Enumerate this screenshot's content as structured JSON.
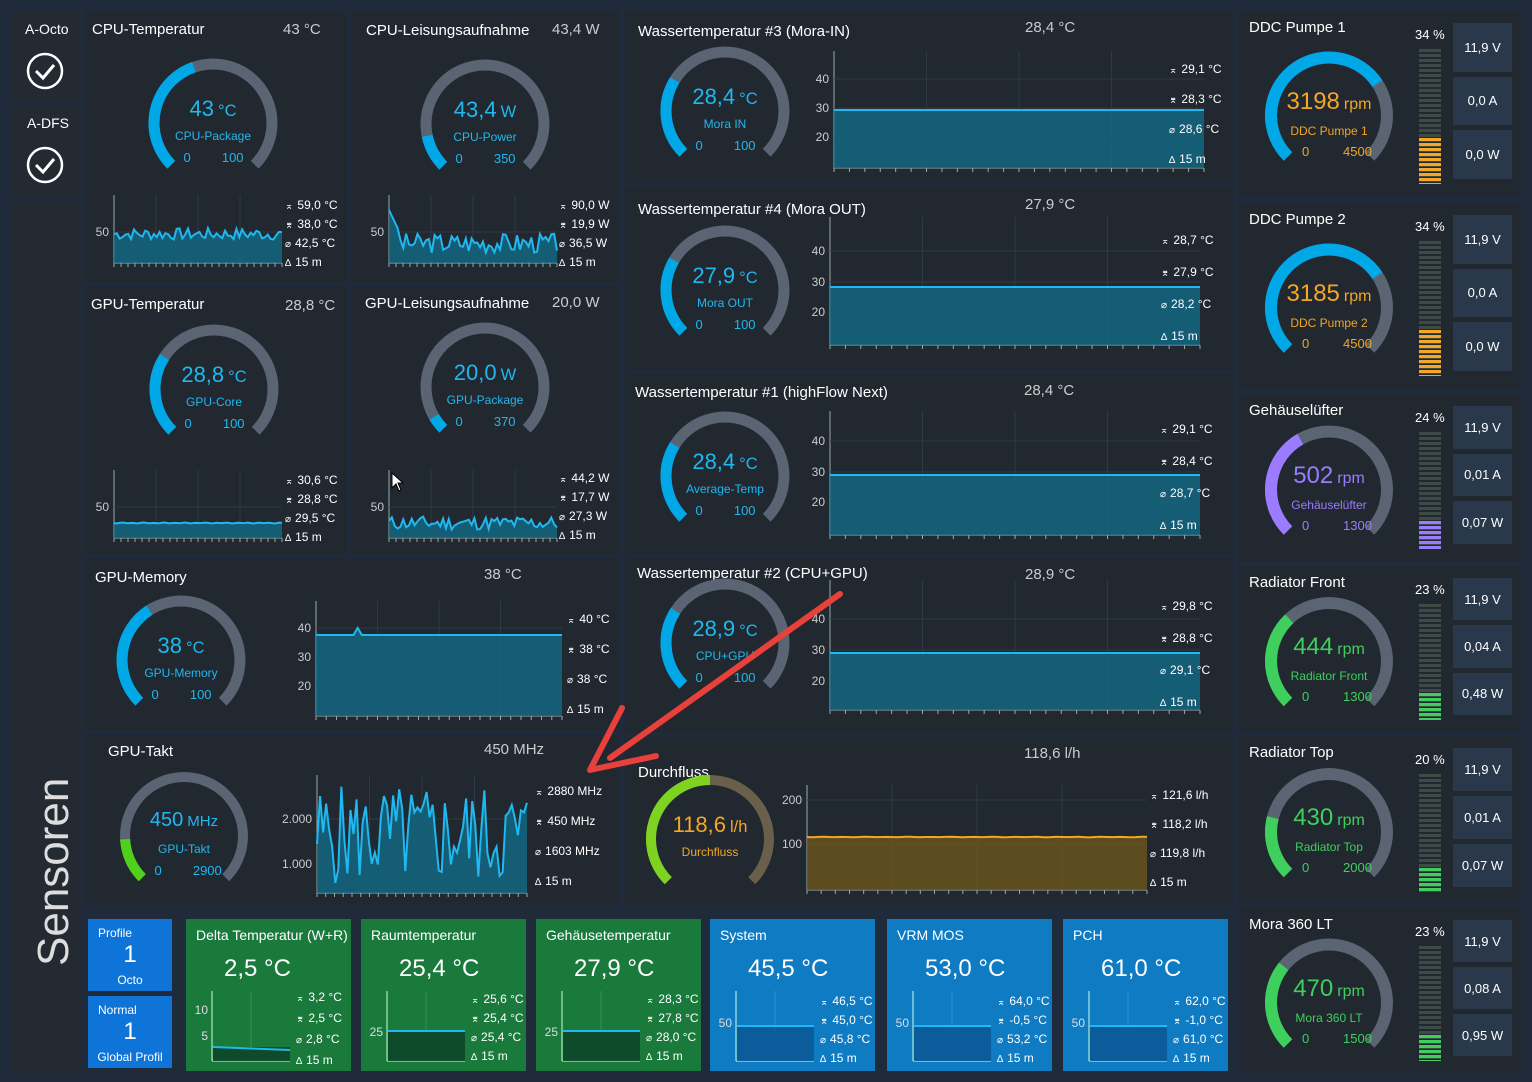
{
  "sidebar": {
    "a_octo": "A-Octo",
    "a_dfs": "A-DFS",
    "sensoren": "Sensoren"
  },
  "gauges": [
    {
      "id": "cpu_temp",
      "title": "CPU-Temperatur",
      "header": "43 °C",
      "value": "43",
      "unit": "°C",
      "label": "CPU-Package",
      "min": "0",
      "max": "100",
      "fraction": 0.43,
      "color": "#00a8e8",
      "track": "#5a6472",
      "stats": [
        "59,0 °C",
        "38,0 °C",
        "42,5 °C",
        "15 m"
      ],
      "yticks": [
        "50"
      ]
    },
    {
      "id": "cpu_power",
      "title": "CPU-Leisungsaufnahme",
      "header": "43,4 W",
      "value": "43,4",
      "unit": "W",
      "label": "CPU-Power",
      "min": "0",
      "max": "350",
      "fraction": 0.124,
      "color": "#00a8e8",
      "track": "#5a6472",
      "stats": [
        "90,0 W",
        "19,9 W",
        "36,5 W",
        "15 m"
      ],
      "yticks": [
        "50"
      ]
    },
    {
      "id": "gpu_temp",
      "title": "GPU-Temperatur",
      "header": "28,8 °C",
      "value": "28,8",
      "unit": "°C",
      "label": "GPU-Core",
      "min": "0",
      "max": "100",
      "fraction": 0.288,
      "color": "#00a8e8",
      "track": "#5a6472",
      "stats": [
        "30,6 °C",
        "28,8 °C",
        "29,5 °C",
        "15 m"
      ],
      "yticks": [
        "50"
      ]
    },
    {
      "id": "gpu_power",
      "title": "GPU-Leisungsaufnahme",
      "header": "20,0 W",
      "value": "20,0",
      "unit": "W",
      "label": "GPU-Package",
      "min": "0",
      "max": "370",
      "fraction": 0.054,
      "color": "#00a8e8",
      "track": "#5a6472",
      "stats": [
        "44,2 W",
        "17,7 W",
        "27,3 W",
        "15 m"
      ],
      "yticks": [
        "50"
      ]
    },
    {
      "id": "gpu_mem",
      "title": "GPU-Memory",
      "header": "38 °C",
      "value": "38",
      "unit": "°C",
      "label": "GPU-Memory",
      "min": "0",
      "max": "100",
      "fraction": 0.38,
      "color": "#00a8e8",
      "track": "#5a6472",
      "stats": [
        "40 °C",
        "38 °C",
        "38 °C",
        "15 m"
      ],
      "yticks": [
        "40",
        "30",
        "20"
      ]
    },
    {
      "id": "gpu_clock",
      "title": "GPU-Takt",
      "header": "450 MHz",
      "value": "450",
      "unit": "MHz",
      "label": "GPU-Takt",
      "min": "0",
      "max": "2900",
      "fraction": 0.155,
      "color": "#4fd11c",
      "track": "#5a6472",
      "stats": [
        "2880 MHz",
        "450 MHz",
        "1603 MHz",
        "15 m"
      ],
      "yticks": [
        "2.000",
        "1.000"
      ]
    },
    {
      "id": "w3",
      "title": "Wassertemperatur #3 (Mora-IN)",
      "header": "28,4 °C",
      "value": "28,4",
      "unit": "°C",
      "label": "Mora IN",
      "min": "0",
      "max": "100",
      "fraction": 0.284,
      "color": "#00a8e8",
      "track": "#5a6472",
      "stats": [
        "29,1 °C",
        "28,3 °C",
        "28,6 °C",
        "15 m"
      ],
      "yticks": [
        "40",
        "30",
        "20"
      ]
    },
    {
      "id": "w4",
      "title": "Wassertemperatur #4 (Mora OUT)",
      "header": "27,9 °C",
      "value": "27,9",
      "unit": "°C",
      "label": "Mora OUT",
      "min": "0",
      "max": "100",
      "fraction": 0.279,
      "color": "#00a8e8",
      "track": "#5a6472",
      "stats": [
        "28,7 °C",
        "27,9 °C",
        "28,2 °C",
        "15 m"
      ],
      "yticks": [
        "40",
        "30",
        "20"
      ]
    },
    {
      "id": "w1",
      "title": "Wassertemperatur #1 (highFlow Next)",
      "header": "28,4 °C",
      "value": "28,4",
      "unit": "°C",
      "label": "Average-Temp",
      "min": "0",
      "max": "100",
      "fraction": 0.284,
      "color": "#00a8e8",
      "track": "#5a6472",
      "stats": [
        "29,1 °C",
        "28,4 °C",
        "28,7 °C",
        "15 m"
      ],
      "yticks": [
        "40",
        "30",
        "20"
      ]
    },
    {
      "id": "w2",
      "title": "Wassertemperatur #2 (CPU+GPU)",
      "header": "28,9 °C",
      "value": "28,9",
      "unit": "°C",
      "label": "CPU+GPU",
      "min": "0",
      "max": "100",
      "fraction": 0.289,
      "color": "#00a8e8",
      "track": "#5a6472",
      "stats": [
        "29,8 °C",
        "28,8 °C",
        "29,1 °C",
        "15 m"
      ],
      "yticks": [
        "40",
        "30",
        "20"
      ]
    },
    {
      "id": "flow",
      "title": "Durchfluss",
      "header": "118,6 l/h",
      "value": "118,6",
      "unit": "l/h",
      "label": "Durchfluss",
      "min": "",
      "max": "",
      "fraction": 0.5,
      "color": "#7ed321",
      "track": "#6a5f4a",
      "stats": [
        "121,6 l/h",
        "118,2 l/h",
        "119,8 l/h",
        "15 m"
      ],
      "yticks": [
        "200",
        "100"
      ]
    }
  ],
  "fans": [
    {
      "id": "ddc1",
      "title": "DDC Pumpe 1",
      "percent": "34 %",
      "value": "3198",
      "unit": "rpm",
      "label": "DDC Pumpe 1",
      "min": "0",
      "max": "4500",
      "fraction": 0.71,
      "color": "#00a8e8",
      "text_color": "#f5a623",
      "bar_color": "#f5a623",
      "level": 0.34,
      "volt": "11,9 V",
      "amp": "0,0 A",
      "watt": "0,0 W"
    },
    {
      "id": "ddc2",
      "title": "DDC Pumpe 2",
      "percent": "34 %",
      "value": "3185",
      "unit": "rpm",
      "label": "DDC Pumpe 2",
      "min": "0",
      "max": "4500",
      "fraction": 0.71,
      "color": "#00a8e8",
      "text_color": "#f5a623",
      "bar_color": "#f5a623",
      "level": 0.34,
      "volt": "11,9 V",
      "amp": "0,0 A",
      "watt": "0,0 W"
    },
    {
      "id": "case",
      "title": "Gehäuselüfter",
      "percent": "24 %",
      "value": "502",
      "unit": "rpm",
      "label": "Gehäuselüfter",
      "min": "0",
      "max": "1300",
      "fraction": 0.39,
      "color": "#9b7bff",
      "text_color": "#9b7bff",
      "bar_color": "#9b7bff",
      "level": 0.24,
      "volt": "11,9 V",
      "amp": "0,01 A",
      "watt": "0,07 W"
    },
    {
      "id": "radfront",
      "title": "Radiator Front",
      "percent": "23 %",
      "value": "444",
      "unit": "rpm",
      "label": "Radiator Front",
      "min": "0",
      "max": "1300",
      "fraction": 0.34,
      "color": "#3ecf5c",
      "text_color": "#3ecf5c",
      "bar_color": "#3ecf5c",
      "level": 0.23,
      "volt": "11,9 V",
      "amp": "0,04 A",
      "watt": "0,48 W"
    },
    {
      "id": "radtop",
      "title": "Radiator Top",
      "percent": "20 %",
      "value": "430",
      "unit": "rpm",
      "label": "Radiator Top",
      "min": "0",
      "max": "2000",
      "fraction": 0.22,
      "color": "#3ecf5c",
      "text_color": "#3ecf5c",
      "bar_color": "#3ecf5c",
      "level": 0.2,
      "volt": "11,9 V",
      "amp": "0,01 A",
      "watt": "0,07 W"
    },
    {
      "id": "mora",
      "title": "Mora 360 LT",
      "percent": "23 %",
      "value": "470",
      "unit": "rpm",
      "label": "Mora 360 LT",
      "min": "0",
      "max": "1500",
      "fraction": 0.31,
      "color": "#3ecf5c",
      "text_color": "#3ecf5c",
      "bar_color": "#3ecf5c",
      "level": 0.23,
      "volt": "11,9 V",
      "amp": "0,08 A",
      "watt": "0,95 W"
    }
  ],
  "profiles": [
    {
      "title": "Profile",
      "number": "1",
      "name": "Octo"
    },
    {
      "title": "Normal",
      "number": "1",
      "name": "Global Profil"
    }
  ],
  "tiles": [
    {
      "id": "delta",
      "title": "Delta Temperatur (W+R)",
      "value": "2,5 °C",
      "bg": "#197a3c",
      "stats": [
        "3,2 °C",
        "2,5 °C",
        "2,8 °C",
        "15 m"
      ],
      "yticks": [
        "10",
        "5"
      ]
    },
    {
      "id": "raum",
      "title": "Raumtemperatur",
      "value": "25,4 °C",
      "bg": "#197a3c",
      "stats": [
        "25,6 °C",
        "25,4 °C",
        "25,4 °C",
        "15 m"
      ],
      "yticks": [
        "25"
      ]
    },
    {
      "id": "gehaeuse",
      "title": "Gehäusetemperatur",
      "value": "27,9 °C",
      "bg": "#197a3c",
      "stats": [
        "28,3 °C",
        "27,8 °C",
        "28,0 °C",
        "15 m"
      ],
      "yticks": [
        "25"
      ]
    },
    {
      "id": "system",
      "title": "System",
      "value": "45,5 °C",
      "bg": "#0e7bc2",
      "stats": [
        "46,5 °C",
        "45,0 °C",
        "45,8 °C",
        "15 m"
      ],
      "yticks": [
        "50"
      ]
    },
    {
      "id": "vrm",
      "title": "VRM MOS",
      "value": "53,0 °C",
      "bg": "#0e7bc2",
      "stats": [
        "64,0 °C",
        "-0,5 °C",
        "53,2 °C",
        "15 m"
      ],
      "yticks": [
        "50"
      ]
    },
    {
      "id": "pch",
      "title": "PCH",
      "value": "61,0 °C",
      "bg": "#0e7bc2",
      "stats": [
        "62,0 °C",
        "-1,0 °C",
        "61,0 °C",
        "15 m"
      ],
      "yticks": [
        "50"
      ]
    }
  ],
  "colors": {
    "accent": "#00a8e8",
    "panel": "#212830",
    "background": "#1e2a38",
    "annotation_arrow": "#e8403a"
  },
  "icons": [
    "check-circle-icon",
    "max-icon",
    "min-icon",
    "avg-icon",
    "delta-time-icon"
  ]
}
